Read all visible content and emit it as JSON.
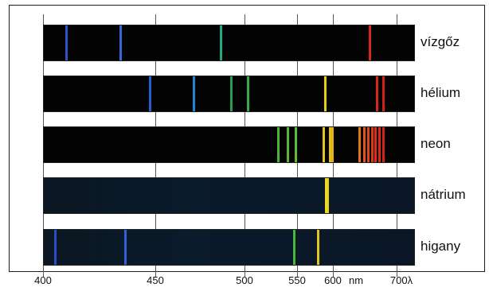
{
  "elements": [
    "vízgőz",
    "hélium",
    "neon",
    "nátrium",
    "higany"
  ],
  "axis": {
    "ticks": [
      "400",
      "450",
      "500",
      "550",
      "600",
      "700λ"
    ],
    "unit": "nm"
  },
  "spectra": [
    {
      "lines": [
        {
          "nm": 410,
          "color": "#2b55d6"
        },
        {
          "nm": 434,
          "color": "#3a6ee8"
        },
        {
          "nm": 486,
          "color": "#23b08a"
        },
        {
          "nm": 656,
          "color": "#e52a1a"
        }
      ]
    },
    {
      "lines": [
        {
          "nm": 447,
          "color": "#2c62e0"
        },
        {
          "nm": 471,
          "color": "#1f8be6"
        },
        {
          "nm": 492,
          "color": "#2aa35a"
        },
        {
          "nm": 502,
          "color": "#38b54a"
        },
        {
          "nm": 588,
          "color": "#f0d81c"
        },
        {
          "nm": 668,
          "color": "#e5291c"
        },
        {
          "nm": 678,
          "color": "#e0201a"
        }
      ]
    },
    {
      "lines": [
        {
          "nm": 531,
          "color": "#4cbf3a"
        },
        {
          "nm": 540,
          "color": "#57c43a"
        },
        {
          "nm": 548,
          "color": "#63c53a"
        },
        {
          "nm": 585,
          "color": "#f1d01c"
        },
        {
          "nm": 594,
          "color": "#f4c61c"
        },
        {
          "nm": 598,
          "color": "#f2b71c"
        },
        {
          "nm": 640,
          "color": "#f07a1c"
        },
        {
          "nm": 648,
          "color": "#ee5a1c"
        },
        {
          "nm": 654,
          "color": "#ec4a1c"
        },
        {
          "nm": 660,
          "color": "#ea3b1c"
        },
        {
          "nm": 665,
          "color": "#e8321c"
        },
        {
          "nm": 671,
          "color": "#e6291c"
        },
        {
          "nm": 678,
          "color": "#e2221c"
        }
      ]
    },
    {
      "lines": [
        {
          "nm": 589,
          "color": "#f5e41c"
        },
        {
          "nm": 591,
          "color": "#f1db1c"
        }
      ]
    },
    {
      "lines": [
        {
          "nm": 405,
          "color": "#2d4fd0"
        },
        {
          "nm": 436,
          "color": "#3763e0"
        },
        {
          "nm": 546,
          "color": "#4bc23a"
        },
        {
          "nm": 578,
          "color": "#f0d01c"
        }
      ]
    }
  ]
}
